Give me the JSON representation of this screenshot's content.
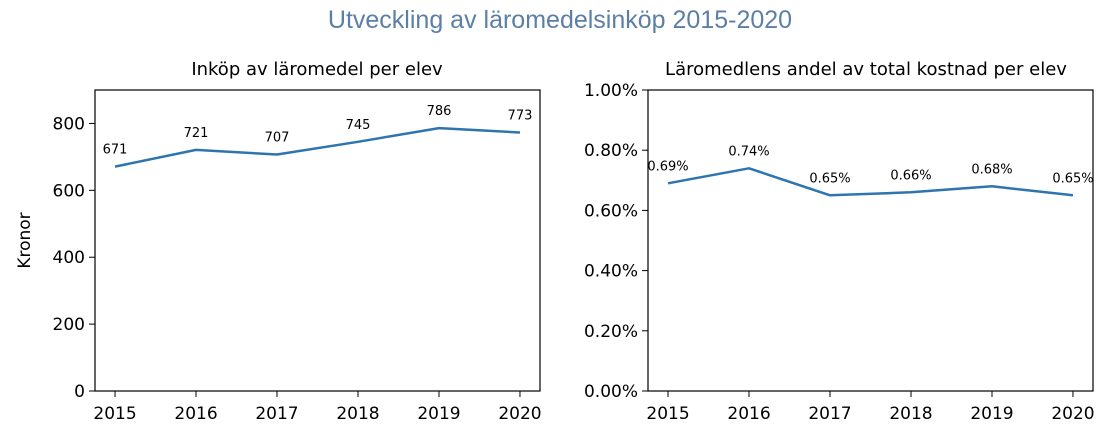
{
  "suptitle": "Utveckling av läromedelsinköp 2015-2020",
  "chart_data": [
    {
      "type": "line",
      "title": "Inköp av läromedel per elev",
      "xlabel": "",
      "ylabel": "Kronor",
      "x": [
        "2015",
        "2016",
        "2017",
        "2018",
        "2019",
        "2020"
      ],
      "series": [
        {
          "values": [
            671,
            721,
            707,
            745,
            786,
            773
          ]
        }
      ],
      "data_labels": [
        "671",
        "721",
        "707",
        "745",
        "786",
        "773"
      ],
      "ylim": [
        0,
        900
      ],
      "yticks": [
        0,
        200,
        400,
        600,
        800
      ],
      "ytick_labels": [
        "0",
        "200",
        "400",
        "600",
        "800"
      ],
      "grid": false,
      "line_color": "#2e75b0"
    },
    {
      "type": "line",
      "title": "Läromedlens andel av total kostnad per elev",
      "xlabel": "",
      "ylabel": "",
      "x": [
        "2015",
        "2016",
        "2017",
        "2018",
        "2019",
        "2020"
      ],
      "series": [
        {
          "values": [
            0.69,
            0.74,
            0.65,
            0.66,
            0.68,
            0.65
          ]
        }
      ],
      "data_labels": [
        "0.69%",
        "0.74%",
        "0.65%",
        "0.66%",
        "0.68%",
        "0.65%"
      ],
      "ylim": [
        0,
        1.0
      ],
      "yticks": [
        0,
        0.2,
        0.4,
        0.6,
        0.8,
        1.0
      ],
      "ytick_labels": [
        "0.00%",
        "0.20%",
        "0.40%",
        "0.60%",
        "0.80%",
        "1.00%"
      ],
      "grid": false,
      "line_color": "#2e75b0"
    }
  ]
}
